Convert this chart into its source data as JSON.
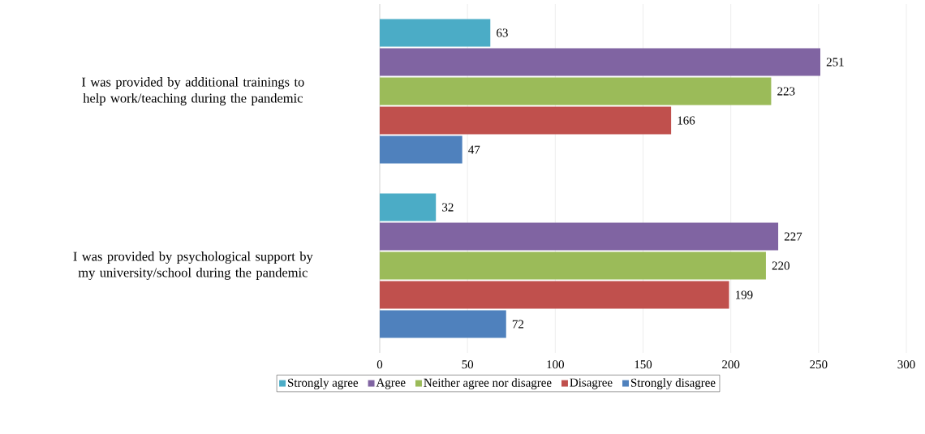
{
  "chart_data": {
    "type": "bar",
    "orientation": "horizontal",
    "categories": [
      "I was provided by additional trainings to help work/teaching during the pandemic",
      "I was provided by psychological support by my university/school during the pandemic"
    ],
    "series": [
      {
        "name": "Strongly agree",
        "color": "#4bacc6",
        "values": [
          63,
          32
        ]
      },
      {
        "name": "Agree",
        "color": "#8064a2",
        "values": [
          251,
          227
        ]
      },
      {
        "name": "Neither agree nor disagree",
        "color": "#9bbb59",
        "values": [
          223,
          220
        ]
      },
      {
        "name": "Disagree",
        "color": "#c0504d",
        "values": [
          166,
          199
        ]
      },
      {
        "name": "Strongly disagree",
        "color": "#4f81bd",
        "values": [
          47,
          72
        ]
      }
    ],
    "xlim": [
      0,
      300
    ],
    "xticks": [
      0,
      50,
      100,
      150,
      200,
      250,
      300
    ],
    "grid": "x",
    "legend": "bottom",
    "data_labels": true
  }
}
